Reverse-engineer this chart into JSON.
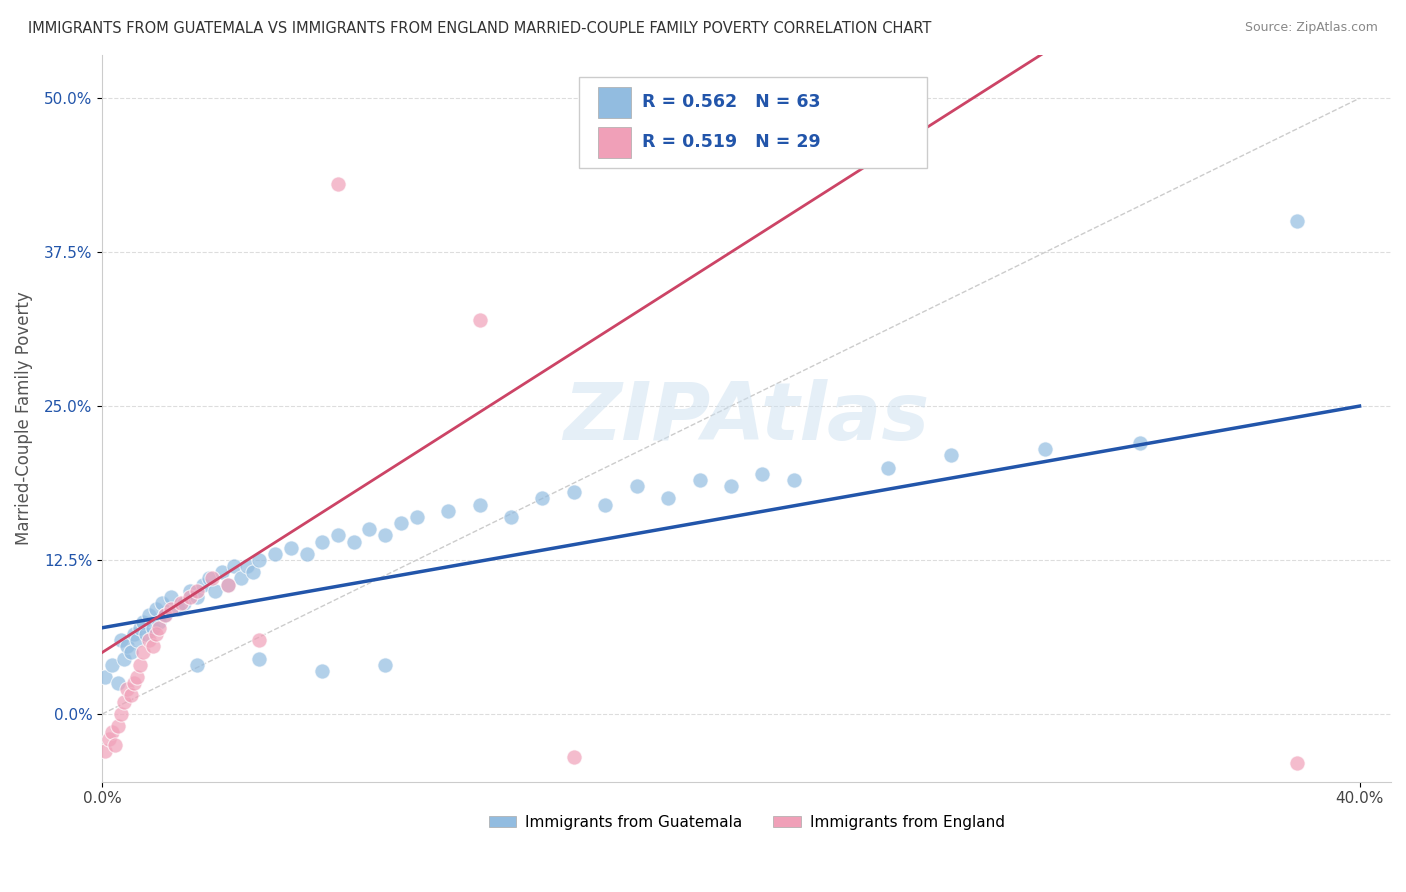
{
  "title": "IMMIGRANTS FROM GUATEMALA VS IMMIGRANTS FROM ENGLAND MARRIED-COUPLE FAMILY POVERTY CORRELATION CHART",
  "source": "Source: ZipAtlas.com",
  "ylabel": "Married-Couple Family Poverty",
  "yticks_labels": [
    "0.0%",
    "12.5%",
    "25.0%",
    "37.5%",
    "50.0%"
  ],
  "ytick_vals": [
    0.0,
    0.125,
    0.25,
    0.375,
    0.5
  ],
  "xticks_labels": [
    "0.0%",
    "40.0%"
  ],
  "xtick_vals": [
    0.0,
    0.4
  ],
  "xlim": [
    0.0,
    0.41
  ],
  "ylim": [
    -0.055,
    0.535
  ],
  "guatemala_color": "#92bce0",
  "england_color": "#f0a0b8",
  "reg_line_guatemala_color": "#2255aa",
  "reg_line_england_color": "#cc4466",
  "ref_line_color": "#cccccc",
  "background_color": "#ffffff",
  "grid_color": "#dddddd",
  "watermark_color": "#cce0f0",
  "legend_R_guatemala": "0.562",
  "legend_N_guatemala": "63",
  "legend_R_england": "0.519",
  "legend_N_england": "29",
  "legend_text_color": "#2255aa",
  "ytick_color": "#2255aa",
  "guatemala_points": [
    [
      0.001,
      0.03
    ],
    [
      0.003,
      0.04
    ],
    [
      0.005,
      0.025
    ],
    [
      0.006,
      0.06
    ],
    [
      0.007,
      0.045
    ],
    [
      0.008,
      0.055
    ],
    [
      0.009,
      0.05
    ],
    [
      0.01,
      0.065
    ],
    [
      0.011,
      0.06
    ],
    [
      0.012,
      0.07
    ],
    [
      0.013,
      0.075
    ],
    [
      0.014,
      0.065
    ],
    [
      0.015,
      0.08
    ],
    [
      0.016,
      0.07
    ],
    [
      0.017,
      0.085
    ],
    [
      0.018,
      0.075
    ],
    [
      0.019,
      0.09
    ],
    [
      0.02,
      0.08
    ],
    [
      0.022,
      0.095
    ],
    [
      0.024,
      0.085
    ],
    [
      0.026,
      0.09
    ],
    [
      0.028,
      0.1
    ],
    [
      0.03,
      0.095
    ],
    [
      0.032,
      0.105
    ],
    [
      0.034,
      0.11
    ],
    [
      0.036,
      0.1
    ],
    [
      0.038,
      0.115
    ],
    [
      0.04,
      0.105
    ],
    [
      0.042,
      0.12
    ],
    [
      0.044,
      0.11
    ],
    [
      0.046,
      0.12
    ],
    [
      0.048,
      0.115
    ],
    [
      0.05,
      0.125
    ],
    [
      0.055,
      0.13
    ],
    [
      0.06,
      0.135
    ],
    [
      0.065,
      0.13
    ],
    [
      0.07,
      0.14
    ],
    [
      0.075,
      0.145
    ],
    [
      0.08,
      0.14
    ],
    [
      0.085,
      0.15
    ],
    [
      0.09,
      0.145
    ],
    [
      0.095,
      0.155
    ],
    [
      0.1,
      0.16
    ],
    [
      0.11,
      0.165
    ],
    [
      0.12,
      0.17
    ],
    [
      0.13,
      0.16
    ],
    [
      0.14,
      0.175
    ],
    [
      0.15,
      0.18
    ],
    [
      0.16,
      0.17
    ],
    [
      0.17,
      0.185
    ],
    [
      0.18,
      0.175
    ],
    [
      0.19,
      0.19
    ],
    [
      0.2,
      0.185
    ],
    [
      0.21,
      0.195
    ],
    [
      0.22,
      0.19
    ],
    [
      0.25,
      0.2
    ],
    [
      0.27,
      0.21
    ],
    [
      0.3,
      0.215
    ],
    [
      0.33,
      0.22
    ],
    [
      0.03,
      0.04
    ],
    [
      0.05,
      0.045
    ],
    [
      0.07,
      0.035
    ],
    [
      0.09,
      0.04
    ],
    [
      0.38,
      0.4
    ]
  ],
  "england_points": [
    [
      0.001,
      -0.03
    ],
    [
      0.002,
      -0.02
    ],
    [
      0.003,
      -0.015
    ],
    [
      0.004,
      -0.025
    ],
    [
      0.005,
      -0.01
    ],
    [
      0.006,
      0.0
    ],
    [
      0.007,
      0.01
    ],
    [
      0.008,
      0.02
    ],
    [
      0.009,
      0.015
    ],
    [
      0.01,
      0.025
    ],
    [
      0.011,
      0.03
    ],
    [
      0.012,
      0.04
    ],
    [
      0.013,
      0.05
    ],
    [
      0.015,
      0.06
    ],
    [
      0.016,
      0.055
    ],
    [
      0.017,
      0.065
    ],
    [
      0.018,
      0.07
    ],
    [
      0.02,
      0.08
    ],
    [
      0.022,
      0.085
    ],
    [
      0.025,
      0.09
    ],
    [
      0.028,
      0.095
    ],
    [
      0.03,
      0.1
    ],
    [
      0.035,
      0.11
    ],
    [
      0.04,
      0.105
    ],
    [
      0.05,
      0.06
    ],
    [
      0.075,
      0.43
    ],
    [
      0.12,
      0.32
    ],
    [
      0.15,
      -0.035
    ],
    [
      0.38,
      -0.04
    ]
  ]
}
